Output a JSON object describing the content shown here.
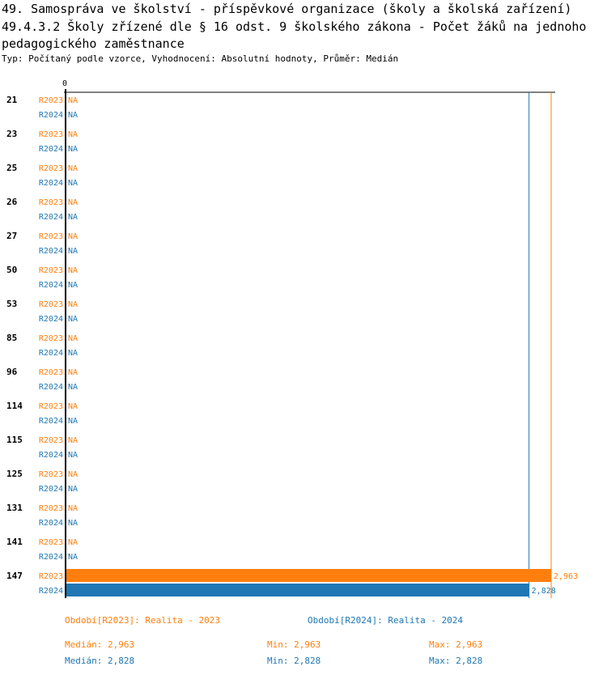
{
  "header": {
    "title_line1": "49. Samospráva ve školství - příspěvkové organizace (školy a školská zařízení)",
    "title_line2": "49.4.3.2 Školy zřízené dle § 16 odst. 9 školského zákona - Počet žáků na jednoho",
    "title_line3": "pedagogického zaměstnance",
    "subinfo": "Typ: Počítaný podle vzorce, Vyhodnocení: Absolutní hodnoty, Průměr: Medián"
  },
  "colors": {
    "r2023": "#ff7f0e",
    "r2024": "#1f77b4",
    "axis": "#000000"
  },
  "chart_data": {
    "type": "bar",
    "orientation": "horizontal",
    "axis_tick_label": "0",
    "xlim": [
      0,
      2963
    ],
    "na_label": "NA",
    "categories": [
      "21",
      "23",
      "25",
      "26",
      "27",
      "50",
      "53",
      "85",
      "96",
      "114",
      "115",
      "125",
      "131",
      "141",
      "147"
    ],
    "series": [
      {
        "name": "R2023",
        "values": [
          null,
          null,
          null,
          null,
          null,
          null,
          null,
          null,
          null,
          null,
          null,
          null,
          null,
          null,
          2963
        ],
        "value_labels": [
          "NA",
          "NA",
          "NA",
          "NA",
          "NA",
          "NA",
          "NA",
          "NA",
          "NA",
          "NA",
          "NA",
          "NA",
          "NA",
          "NA",
          "2,963"
        ]
      },
      {
        "name": "R2024",
        "values": [
          null,
          null,
          null,
          null,
          null,
          null,
          null,
          null,
          null,
          null,
          null,
          null,
          null,
          null,
          2828
        ],
        "value_labels": [
          "NA",
          "NA",
          "NA",
          "NA",
          "NA",
          "NA",
          "NA",
          "NA",
          "NA",
          "NA",
          "NA",
          "NA",
          "NA",
          "NA",
          "2,828"
        ]
      }
    ],
    "reference_lines": [
      {
        "series": "R2023",
        "value": 2963
      },
      {
        "series": "R2024",
        "value": 2828
      }
    ]
  },
  "legend": {
    "r2023": "Období[R2023]: Realita - 2023",
    "r2024": "Období[R2024]: Realita - 2024"
  },
  "stats": {
    "r2023": {
      "median": "Medián: 2,963",
      "min": "Min: 2,963",
      "max": "Max: 2,963"
    },
    "r2024": {
      "median": "Medián: 2,828",
      "min": "Min: 2,828",
      "max": "Max: 2,828"
    }
  }
}
